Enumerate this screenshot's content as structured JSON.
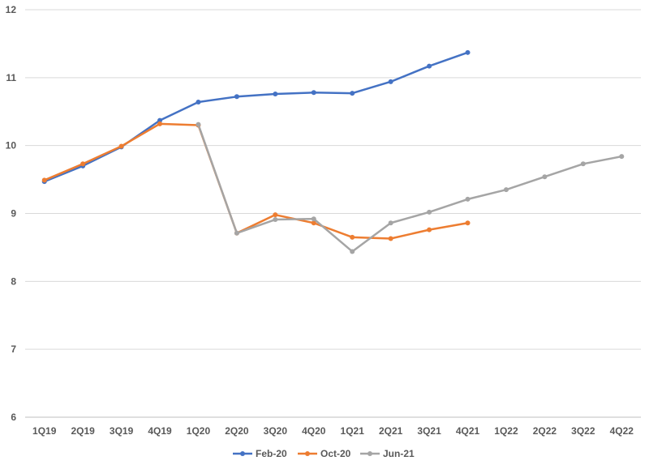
{
  "chart_data": {
    "type": "line",
    "categories": [
      "1Q19",
      "2Q19",
      "3Q19",
      "4Q19",
      "1Q20",
      "2Q20",
      "3Q20",
      "4Q20",
      "1Q21",
      "2Q21",
      "3Q21",
      "4Q21",
      "1Q22",
      "2Q22",
      "3Q22",
      "4Q22"
    ],
    "ylim": [
      6,
      12
    ],
    "yticks": [
      6,
      7,
      8,
      9,
      10,
      11,
      12
    ],
    "grid": true,
    "legend": "bottom",
    "series": [
      {
        "name": "Feb-20",
        "color": "#4472C4",
        "values": [
          9.47,
          9.7,
          9.98,
          10.37,
          10.64,
          10.72,
          10.76,
          10.78,
          10.77,
          10.94,
          11.17,
          11.37,
          null,
          null,
          null,
          null
        ]
      },
      {
        "name": "Oct-20",
        "color": "#ED7D31",
        "values": [
          9.49,
          9.73,
          9.99,
          10.32,
          10.3,
          8.71,
          8.98,
          8.86,
          8.65,
          8.63,
          8.76,
          8.86,
          null,
          null,
          null,
          null
        ]
      },
      {
        "name": "Jun-21",
        "color": "#A5A5A5",
        "values": [
          null,
          null,
          null,
          null,
          10.31,
          8.71,
          8.91,
          8.92,
          8.44,
          8.86,
          9.02,
          9.21,
          9.35,
          9.54,
          9.73,
          9.84
        ]
      }
    ]
  }
}
